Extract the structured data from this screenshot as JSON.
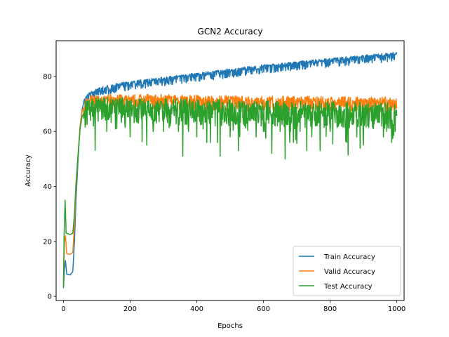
{
  "chart_data": {
    "type": "line",
    "title": "GCN2 Accuracy",
    "xlabel": "Epochs",
    "ylabel": "Accuracy",
    "xlim": [
      -22,
      1022
    ],
    "ylim": [
      -1.5,
      93
    ],
    "xticks": [
      0,
      200,
      400,
      600,
      800,
      1000
    ],
    "yticks": [
      0,
      20,
      40,
      60,
      80
    ],
    "grid": false,
    "legend_position": "lower right",
    "series": [
      {
        "name": "Train Accuracy",
        "color": "#1f77b4",
        "points": [
          [
            0,
            3.0
          ],
          [
            3,
            10.0
          ],
          [
            6,
            13.0
          ],
          [
            10,
            8.0
          ],
          [
            20,
            7.8
          ],
          [
            28,
            9.0
          ],
          [
            33,
            20.0
          ],
          [
            38,
            36.0
          ],
          [
            44,
            50.0
          ],
          [
            50,
            62.0
          ],
          [
            56,
            68.0
          ],
          [
            62,
            71.0
          ],
          [
            70,
            72.5
          ],
          [
            80,
            73.5
          ],
          [
            100,
            75.0
          ],
          [
            150,
            76.5
          ],
          [
            200,
            77.5
          ],
          [
            300,
            79.0
          ],
          [
            400,
            80.5
          ],
          [
            500,
            82.0
          ],
          [
            600,
            83.5
          ],
          [
            700,
            84.7
          ],
          [
            800,
            85.8
          ],
          [
            900,
            87.0
          ],
          [
            1000,
            88.0
          ]
        ],
        "noise_low": 2.5,
        "noise_high": 0.8
      },
      {
        "name": "Valid Accuracy",
        "color": "#ff7f0e",
        "points": [
          [
            0,
            5.0
          ],
          [
            3,
            20.0
          ],
          [
            6,
            22.0
          ],
          [
            10,
            15.5
          ],
          [
            20,
            15.3
          ],
          [
            28,
            16.0
          ],
          [
            33,
            26.0
          ],
          [
            38,
            40.0
          ],
          [
            44,
            52.0
          ],
          [
            50,
            62.0
          ],
          [
            56,
            67.5
          ],
          [
            65,
            70.0
          ],
          [
            80,
            71.0
          ],
          [
            150,
            71.5
          ],
          [
            300,
            71.5
          ],
          [
            500,
            71.0
          ],
          [
            700,
            70.8
          ],
          [
            1000,
            70.5
          ]
        ],
        "noise_low": 3.5,
        "noise_high": 2.0
      },
      {
        "name": "Test Accuracy",
        "color": "#2ca02c",
        "points": [
          [
            0,
            3.5
          ],
          [
            2,
            23.0
          ],
          [
            5,
            35.0
          ],
          [
            8,
            23.0
          ],
          [
            20,
            22.5
          ],
          [
            28,
            23.0
          ],
          [
            33,
            30.0
          ],
          [
            38,
            42.0
          ],
          [
            44,
            52.0
          ],
          [
            50,
            61.0
          ],
          [
            56,
            65.5
          ],
          [
            65,
            67.5
          ],
          [
            80,
            68.5
          ],
          [
            150,
            69.0
          ],
          [
            300,
            68.5
          ],
          [
            500,
            68.0
          ],
          [
            700,
            67.5
          ],
          [
            1000,
            67.0
          ]
        ],
        "noise_low": 6.0,
        "noise_high": 3.5,
        "dips": [
          [
            90,
            62
          ],
          [
            130,
            60
          ],
          [
            160,
            61
          ],
          [
            200,
            58
          ],
          [
            225,
            63
          ],
          [
            250,
            55
          ],
          [
            270,
            61
          ],
          [
            300,
            60
          ],
          [
            320,
            62
          ],
          [
            345,
            60
          ],
          [
            358,
            51
          ],
          [
            375,
            60
          ],
          [
            400,
            58
          ],
          [
            430,
            56
          ],
          [
            455,
            62
          ],
          [
            470,
            51
          ],
          [
            500,
            58
          ],
          [
            525,
            53
          ],
          [
            550,
            63
          ],
          [
            578,
            58
          ],
          [
            600,
            60
          ],
          [
            625,
            52
          ],
          [
            650,
            60
          ],
          [
            665,
            50
          ],
          [
            690,
            56
          ],
          [
            710,
            60
          ],
          [
            730,
            53
          ],
          [
            745,
            58
          ],
          [
            770,
            53
          ],
          [
            800,
            60
          ],
          [
            825,
            62
          ],
          [
            850,
            56
          ],
          [
            880,
            58
          ],
          [
            900,
            55
          ],
          [
            930,
            61
          ],
          [
            960,
            58
          ],
          [
            985,
            56
          ],
          [
            995,
            60
          ]
        ]
      }
    ]
  }
}
